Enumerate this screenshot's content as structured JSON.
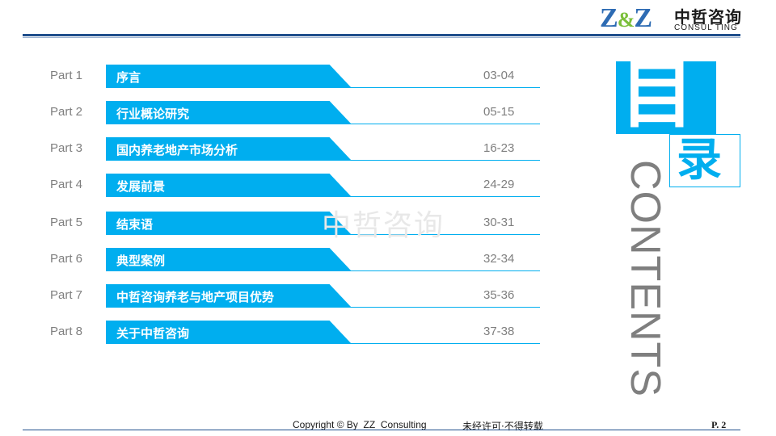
{
  "header": {
    "logo_mark": "Z&Z",
    "logo_mark_left": "Z",
    "logo_mark_amp": "&",
    "logo_mark_right": "Z",
    "logo_cn": "中哲咨询",
    "logo_en": "CONSUL TING"
  },
  "toc": [
    {
      "part": "Part 1",
      "title": "序言",
      "pages": "03-04"
    },
    {
      "part": "Part 2",
      "title": "行业概论研究",
      "pages": "05-15"
    },
    {
      "part": "Part 3",
      "title": "国内养老地产市场分析",
      "pages": "16-23"
    },
    {
      "part": "Part 4",
      "title": "发展前景",
      "pages": "24-29"
    },
    {
      "part": "Part 5",
      "title": "结束语",
      "pages": "30-31"
    },
    {
      "part": "Part 6",
      "title": "典型案例",
      "pages": "32-34"
    },
    {
      "part": "Part 7",
      "title": "中哲咨询养老与地产项目优势",
      "pages": "35-36"
    },
    {
      "part": "Part 8",
      "title": "关于中哲咨询",
      "pages": "37-38"
    }
  ],
  "side": {
    "mu": "目",
    "lu": "录",
    "contents": "CONTENTS"
  },
  "watermark": "中哲咨询",
  "footer": {
    "copyright": "Copyright © By  ZZ  Consulting",
    "note": "未经许可·不得转载",
    "page": "P. 2"
  },
  "colors": {
    "accent": "#00aeef",
    "header_rule": "#1f4e8c",
    "text_gray": "#7f7f7f"
  }
}
